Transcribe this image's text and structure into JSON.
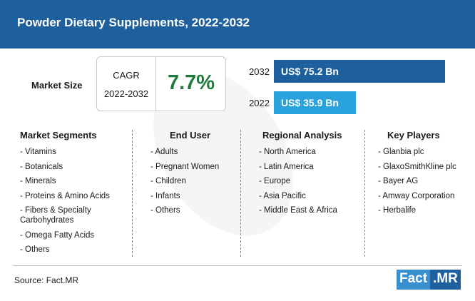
{
  "title": "Powder Dietary Supplements, 2022-2032",
  "market_size_label": "Market Size",
  "cagr": {
    "label": "CAGR",
    "period": "2022-2032",
    "value": "7.7%"
  },
  "colors": {
    "header": "#1e5f9e",
    "bar_2032": "#1e5f9e",
    "bar_2022": "#2aa3dc",
    "cagr_value": "#1f7a3a"
  },
  "chart_data": {
    "type": "bar",
    "categories": [
      "2032",
      "2022"
    ],
    "values": [
      75.2,
      35.9
    ],
    "value_labels": [
      "US$ 75.2 Bn",
      "US$ 35.9 Bn"
    ],
    "orientation": "horizontal"
  },
  "segments": {
    "market_segments": {
      "heading": "Market Segments",
      "items": [
        "- Vitamins",
        "- Botanicals",
        "- Minerals",
        "- Proteins & Amino Acids",
        "- Fibers & Specialty Carbohydrates",
        "- Omega Fatty Acids",
        "- Others"
      ]
    },
    "end_user": {
      "heading": "End User",
      "items": [
        "- Adults",
        "- Pregnant Women",
        "- Children",
        "- Infants",
        "- Others"
      ]
    },
    "regional_analysis": {
      "heading": "Regional Analysis",
      "items": [
        "- North America",
        "- Latin America",
        "- Europe",
        "- Asia Pacific",
        "- Middle East & Africa"
      ]
    },
    "key_players": {
      "heading": "Key Players",
      "items": [
        "- Glanbia plc",
        "- GlaxoSmithKline plc",
        "- Bayer AG",
        "- Amway Corporation",
        "- Herbalife"
      ]
    }
  },
  "footer": {
    "source": "Source: Fact.MR",
    "logo_left": "Fact",
    "logo_right": ".MR"
  }
}
